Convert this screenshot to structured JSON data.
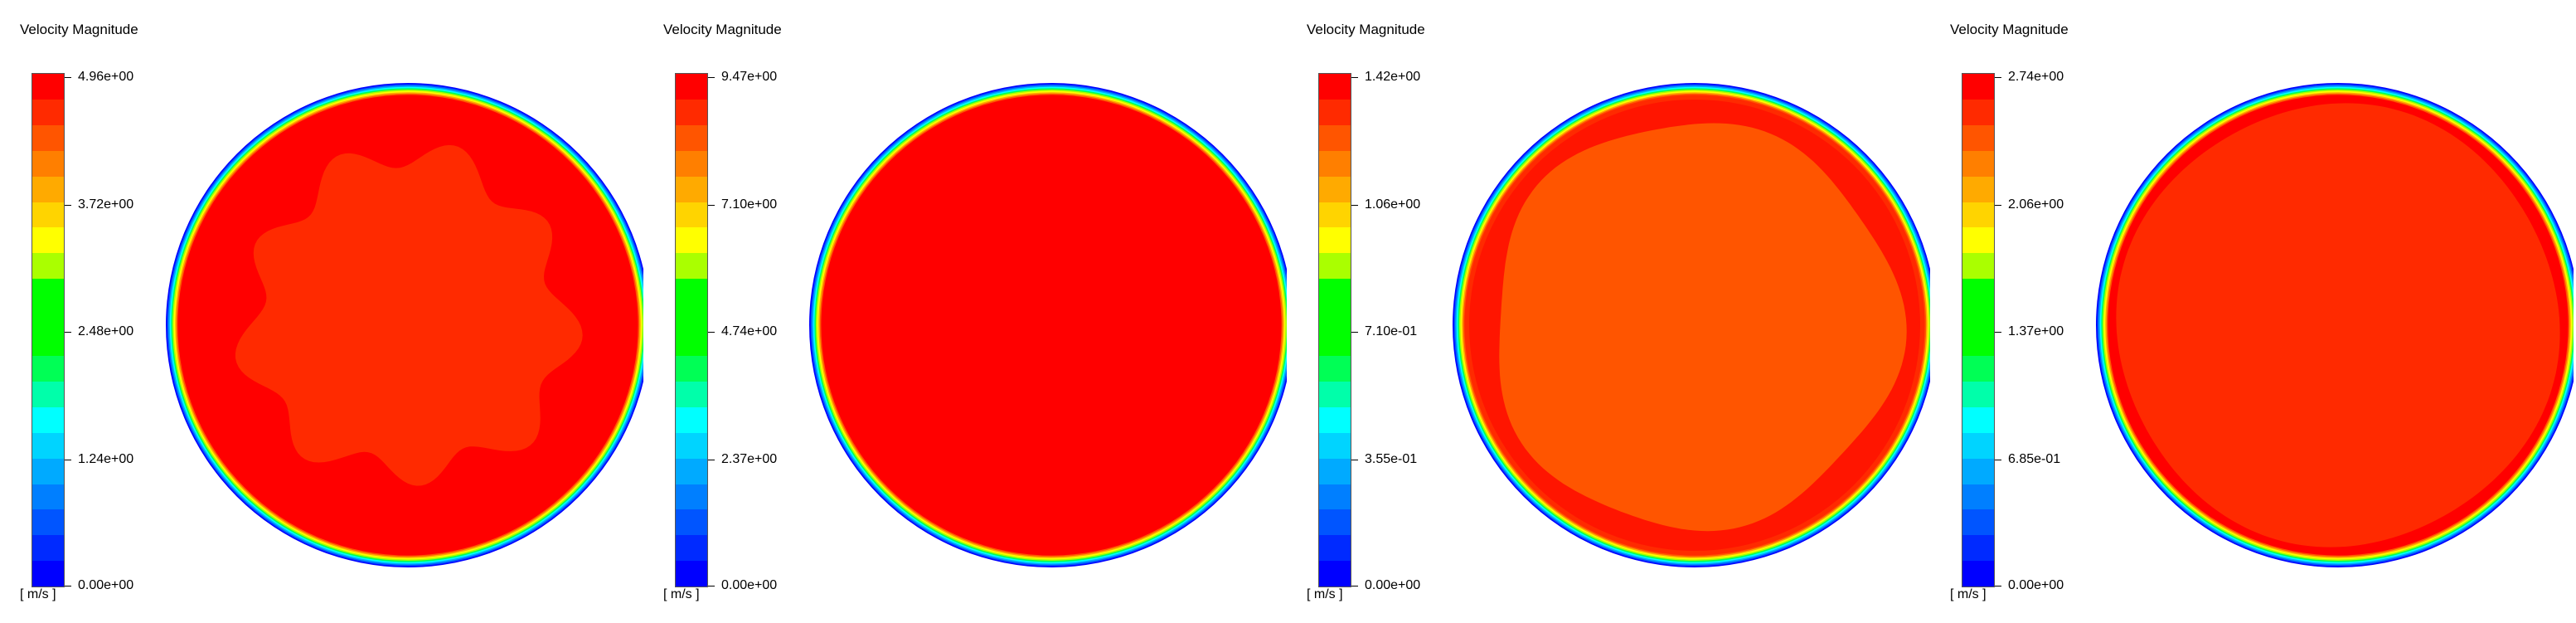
{
  "colormap": [
    "#ff0000",
    "#ff2a00",
    "#ff5500",
    "#ff7f00",
    "#ffaa00",
    "#ffd400",
    "#ffff00",
    "#aaff00",
    "#00ff00",
    "#00ff00",
    "#00ff00",
    "#00ff55",
    "#00ffaa",
    "#00ffff",
    "#00d4ff",
    "#00aaff",
    "#007fff",
    "#0055ff",
    "#002aff",
    "#0000ff"
  ],
  "panels": [
    {
      "title": "Velocity Magnitude",
      "unit": "[ m/s ]",
      "ticks": [
        "4.96e+00",
        "3.72e+00",
        "2.48e+00",
        "1.24e+00",
        "0.00e+00"
      ],
      "fill": "#ff0000",
      "inner_fill": "#ff2a00",
      "inner_shape": "wavy"
    },
    {
      "title": "Velocity Magnitude",
      "unit": "[ m/s ]",
      "ticks": [
        "9.47e+00",
        "7.10e+00",
        "4.74e+00",
        "2.37e+00",
        "0.00e+00"
      ],
      "fill": "#ff0000",
      "inner_fill": "#ff0000",
      "inner_shape": "none"
    },
    {
      "title": "Velocity Magnitude",
      "unit": "[ m/s ]",
      "ticks": [
        "1.42e+00",
        "1.06e+00",
        "7.10e-01",
        "3.55e-01",
        "0.00e+00"
      ],
      "fill": "#ff2a00",
      "inner_fill": "#ff5500",
      "inner_shape": "rounded"
    },
    {
      "title": "Velocity Magnitude",
      "unit": "[ m/s ]",
      "ticks": [
        "2.74e+00",
        "2.06e+00",
        "1.37e+00",
        "6.85e-01",
        "0.00e+00"
      ],
      "fill": "#ff0000",
      "inner_fill": "#ff2a00",
      "inner_shape": "round"
    }
  ]
}
